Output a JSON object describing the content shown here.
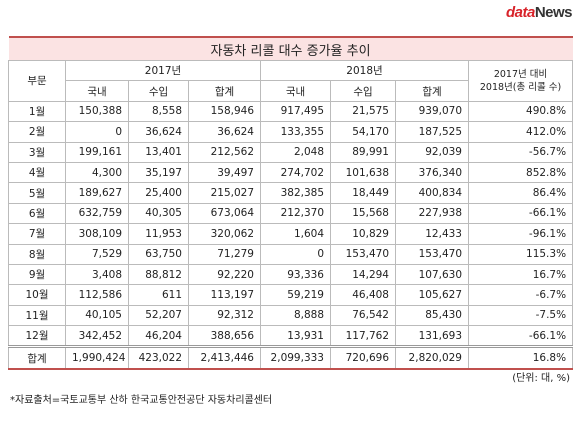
{
  "logo": {
    "data": "data",
    "news": "News"
  },
  "table": {
    "title": "자동차 리콜 대수 증가율 추이",
    "header": {
      "category": "부문",
      "year1": "2017년",
      "year2": "2018년",
      "sub": [
        "국내",
        "수입",
        "합계",
        "국내",
        "수입",
        "합계"
      ],
      "change": [
        "2017년 대비",
        "2018년(총 리콜 수)"
      ]
    },
    "rows": [
      [
        "1월",
        "150,388",
        "8,558",
        "158,946",
        "917,495",
        "21,575",
        "939,070",
        "490.8%"
      ],
      [
        "2월",
        "0",
        "36,624",
        "36,624",
        "133,355",
        "54,170",
        "187,525",
        "412.0%"
      ],
      [
        "3월",
        "199,161",
        "13,401",
        "212,562",
        "2,048",
        "89,991",
        "92,039",
        "-56.7%"
      ],
      [
        "4월",
        "4,300",
        "35,197",
        "39,497",
        "274,702",
        "101,638",
        "376,340",
        "852.8%"
      ],
      [
        "5월",
        "189,627",
        "25,400",
        "215,027",
        "382,385",
        "18,449",
        "400,834",
        "86.4%"
      ],
      [
        "6월",
        "632,759",
        "40,305",
        "673,064",
        "212,370",
        "15,568",
        "227,938",
        "-66.1%"
      ],
      [
        "7월",
        "308,109",
        "11,953",
        "320,062",
        "1,604",
        "10,829",
        "12,433",
        "-96.1%"
      ],
      [
        "8월",
        "7,529",
        "63,750",
        "71,279",
        "0",
        "153,470",
        "153,470",
        "115.3%"
      ],
      [
        "9월",
        "3,408",
        "88,812",
        "92,220",
        "93,336",
        "14,294",
        "107,630",
        "16.7%"
      ],
      [
        "10월",
        "112,586",
        "611",
        "113,197",
        "59,219",
        "46,408",
        "105,627",
        "-6.7%"
      ],
      [
        "11월",
        "40,105",
        "52,207",
        "92,312",
        "8,888",
        "76,542",
        "85,430",
        "-7.5%"
      ],
      [
        "12월",
        "342,452",
        "46,204",
        "388,656",
        "13,931",
        "117,762",
        "131,693",
        "-66.1%"
      ]
    ],
    "total": [
      "합계",
      "1,990,424",
      "423,022",
      "2,413,446",
      "2,099,333",
      "720,696",
      "2,820,029",
      "16.8%"
    ]
  },
  "unit": "(단위: 대, %)",
  "source": "*자료출처=국토교통부 산하 한국교통안전공단 자동차리콜센터"
}
